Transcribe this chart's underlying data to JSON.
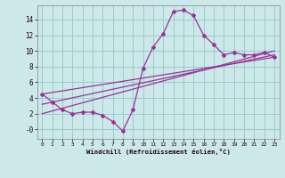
{
  "x_data": [
    0,
    1,
    2,
    3,
    4,
    5,
    6,
    7,
    8,
    9,
    10,
    11,
    12,
    13,
    14,
    15,
    16,
    17,
    18,
    19,
    20,
    21,
    22,
    23
  ],
  "y_main": [
    4.5,
    3.5,
    2.5,
    2.0,
    2.2,
    2.2,
    1.8,
    1.0,
    -0.2,
    2.5,
    7.8,
    10.5,
    12.2,
    15.0,
    15.2,
    14.5,
    12.0,
    10.8,
    9.5,
    9.8,
    9.5,
    9.5,
    9.8,
    9.2
  ],
  "trend_lines": [
    [
      4.5,
      9.2
    ],
    [
      3.2,
      9.5
    ],
    [
      2.0,
      10.0
    ]
  ],
  "bg_color": "#cce8e8",
  "grid_color": "#99cccc",
  "line_color": "#993399",
  "xlabel": "Windchill (Refroidissement éolien,°C)",
  "xlim": [
    -0.5,
    23.5
  ],
  "ylim": [
    -1.2,
    15.8
  ],
  "yticks": [
    0,
    2,
    4,
    6,
    8,
    10,
    12,
    14
  ],
  "ytick_labels": [
    "-0",
    "2",
    "4",
    "6",
    "8",
    "10",
    "12",
    "14"
  ],
  "xticks": [
    0,
    1,
    2,
    3,
    4,
    5,
    6,
    7,
    8,
    9,
    10,
    11,
    12,
    13,
    14,
    15,
    16,
    17,
    18,
    19,
    20,
    21,
    22,
    23
  ]
}
